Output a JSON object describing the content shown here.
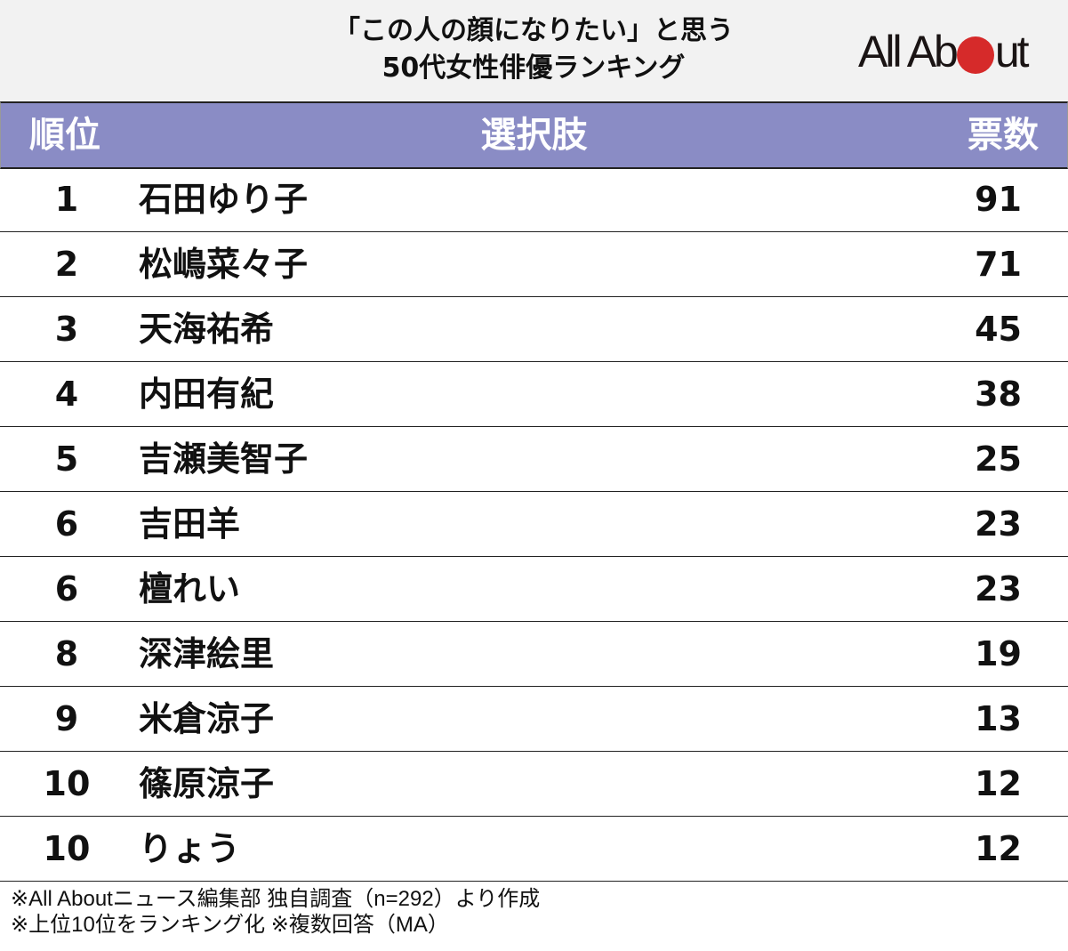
{
  "title": {
    "line1": "「この人の顔になりたい」と思う",
    "line2": "50代女性俳優ランキング"
  },
  "logo": {
    "text_before": "All Ab",
    "text_after": "ut",
    "dot_color": "#d62a2a"
  },
  "colors": {
    "header_bg": "#8a8cc5",
    "title_bg": "#f2f2f2"
  },
  "header": {
    "rank": "順位",
    "choice": "選択肢",
    "votes": "票数"
  },
  "rows": [
    {
      "rank": "1",
      "name": "石田ゆり子",
      "votes": "91"
    },
    {
      "rank": "2",
      "name": "松嶋菜々子",
      "votes": "71"
    },
    {
      "rank": "3",
      "name": "天海祐希",
      "votes": "45"
    },
    {
      "rank": "4",
      "name": "内田有紀",
      "votes": "38"
    },
    {
      "rank": "5",
      "name": "吉瀬美智子",
      "votes": "25"
    },
    {
      "rank": "6",
      "name": "吉田羊",
      "votes": "23"
    },
    {
      "rank": "6",
      "name": "檀れい",
      "votes": "23"
    },
    {
      "rank": "8",
      "name": "深津絵里",
      "votes": "19"
    },
    {
      "rank": "9",
      "name": "米倉涼子",
      "votes": "13"
    },
    {
      "rank": "10",
      "name": "篠原涼子",
      "votes": "12"
    },
    {
      "rank": "10",
      "name": "りょう",
      "votes": "12"
    }
  ],
  "notes": {
    "line1": "※All Aboutニュース編集部 独自調査（n=292）より作成",
    "line2": "※上位10位をランキング化 ※複数回答（MA）"
  },
  "chart_data": {
    "type": "table",
    "title": "「この人の顔になりたい」と思う 50代女性俳優ランキング",
    "columns": [
      "順位",
      "選択肢",
      "票数"
    ],
    "categories": [
      "石田ゆり子",
      "松嶋菜々子",
      "天海祐希",
      "内田有紀",
      "吉瀬美智子",
      "吉田羊",
      "檀れい",
      "深津絵里",
      "米倉涼子",
      "篠原涼子",
      "りょう"
    ],
    "ranks": [
      1,
      2,
      3,
      4,
      5,
      6,
      6,
      8,
      9,
      10,
      10
    ],
    "values": [
      91,
      71,
      45,
      38,
      25,
      23,
      23,
      19,
      13,
      12,
      12
    ],
    "n": 292
  }
}
